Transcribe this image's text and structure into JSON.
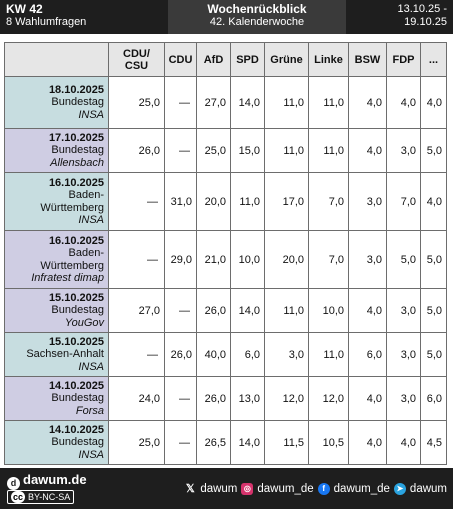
{
  "header": {
    "kw": "KW 42",
    "subtitle": "8 Wahlumfragen",
    "center_title": "Wochenrückblick",
    "center_sub": "42. Kalenderwoche",
    "range_line1": "13.10.25 -",
    "range_line2": "19.10.25"
  },
  "table": {
    "columns": [
      "CDU/\nCSU",
      "CDU",
      "AfD",
      "SPD",
      "Grüne",
      "Linke",
      "BSW",
      "FDP",
      "..."
    ],
    "rows": [
      {
        "date": "18.10.2025",
        "region": [
          "Bundestag"
        ],
        "institute": "INSA",
        "tint": "blue",
        "values": [
          "25,0",
          "—",
          "27,0",
          "14,0",
          "11,0",
          "11,0",
          "4,0",
          "4,0",
          "4,0"
        ]
      },
      {
        "date": "17.10.2025",
        "region": [
          "Bundestag"
        ],
        "institute": "Allensbach",
        "tint": "purple",
        "values": [
          "26,0",
          "—",
          "25,0",
          "15,0",
          "11,0",
          "11,0",
          "4,0",
          "3,0",
          "5,0"
        ]
      },
      {
        "date": "16.10.2025",
        "region": [
          "Baden-",
          "Württemberg"
        ],
        "institute": "INSA",
        "tint": "blue",
        "values": [
          "—",
          "31,0",
          "20,0",
          "11,0",
          "17,0",
          "7,0",
          "3,0",
          "7,0",
          "4,0"
        ]
      },
      {
        "date": "16.10.2025",
        "region": [
          "Baden-",
          "Württemberg"
        ],
        "institute": "Infratest dimap",
        "tint": "purple",
        "values": [
          "—",
          "29,0",
          "21,0",
          "10,0",
          "20,0",
          "7,0",
          "3,0",
          "5,0",
          "5,0"
        ]
      },
      {
        "date": "15.10.2025",
        "region": [
          "Bundestag"
        ],
        "institute": "YouGov",
        "tint": "purple",
        "values": [
          "27,0",
          "—",
          "26,0",
          "14,0",
          "11,0",
          "10,0",
          "4,0",
          "3,0",
          "5,0"
        ]
      },
      {
        "date": "15.10.2025",
        "region": [
          "Sachsen-Anhalt"
        ],
        "institute": "INSA",
        "tint": "blue",
        "values": [
          "—",
          "26,0",
          "40,0",
          "6,0",
          "3,0",
          "11,0",
          "6,0",
          "3,0",
          "5,0"
        ]
      },
      {
        "date": "14.10.2025",
        "region": [
          "Bundestag"
        ],
        "institute": "Forsa",
        "tint": "purple",
        "values": [
          "24,0",
          "—",
          "26,0",
          "13,0",
          "12,0",
          "12,0",
          "4,0",
          "3,0",
          "6,0"
        ]
      },
      {
        "date": "14.10.2025",
        "region": [
          "Bundestag"
        ],
        "institute": "INSA",
        "tint": "blue",
        "values": [
          "25,0",
          "—",
          "26,5",
          "14,0",
          "11,5",
          "10,5",
          "4,0",
          "4,0",
          "4,5"
        ]
      }
    ]
  },
  "footer": {
    "brand": "dawum.de",
    "license_cc": "cc",
    "license_text": "BY-NC-SA",
    "socials": [
      {
        "icon": "x-icon",
        "label": "dawum"
      },
      {
        "icon": "instagram-icon",
        "label": "dawum_de"
      },
      {
        "icon": "facebook-icon",
        "label": "dawum_de"
      },
      {
        "icon": "telegram-icon",
        "label": "dawum"
      }
    ]
  }
}
